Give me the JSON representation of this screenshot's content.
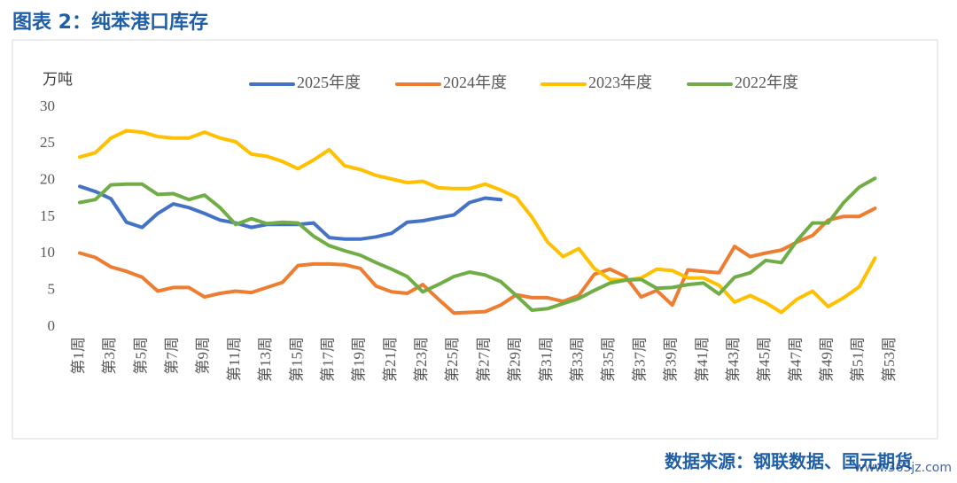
{
  "chart_data": {
    "type": "line",
    "title": "图表 2：纯苯港口库存",
    "y_label": "万吨",
    "source": "数据来源：钢联数据、国元期货",
    "watermark": "www.365jz.com",
    "categories": [
      "第1周",
      null,
      "第3周",
      null,
      "第5周",
      null,
      "第7周",
      null,
      "第9周",
      null,
      "第11周",
      null,
      "第13周",
      null,
      "第15周",
      null,
      "第17周",
      null,
      "第19周",
      null,
      "第21周",
      null,
      "第23周",
      null,
      "第25周",
      null,
      "第27周",
      null,
      "第29周",
      null,
      "第31周",
      null,
      "第33周",
      null,
      "第35周",
      null,
      "第37周",
      null,
      "第39周",
      null,
      "第41周",
      null,
      "第43周",
      null,
      "第45周",
      null,
      "第47周",
      null,
      "第49周",
      null,
      "第51周",
      null,
      "第53周"
    ],
    "ylim": [
      0,
      30
    ],
    "yticks": [
      0,
      5,
      10,
      15,
      20,
      25,
      30
    ],
    "grid": false,
    "legend": "top",
    "series": [
      {
        "name": "2025年度",
        "color": "#4472c4",
        "values": [
          19.2,
          18.5,
          17.5,
          14.3,
          13.6,
          15.5,
          16.8,
          16.3,
          15.5,
          14.6,
          14.2,
          13.6,
          14.0,
          14.0,
          14.0,
          14.2,
          12.2,
          12.0,
          12.0,
          12.3,
          12.8,
          14.3,
          14.5,
          14.9,
          15.3,
          17.0,
          17.6,
          17.4,
          null,
          null,
          null,
          null,
          null,
          null,
          null,
          null,
          null,
          null,
          null,
          null,
          null,
          null,
          null,
          null,
          null,
          null,
          null,
          null,
          null,
          null,
          null,
          null,
          null
        ]
      },
      {
        "name": "2024年度",
        "color": "#ed7d31",
        "values": [
          10.1,
          9.5,
          8.2,
          7.6,
          6.8,
          4.9,
          5.4,
          5.4,
          4.1,
          4.6,
          4.9,
          4.7,
          5.4,
          6.1,
          8.4,
          8.6,
          8.6,
          8.5,
          8.0,
          5.6,
          4.8,
          4.6,
          5.8,
          3.8,
          1.9,
          2.0,
          2.1,
          3.0,
          4.4,
          4.0,
          4.0,
          3.5,
          4.3,
          7.2,
          7.9,
          6.9,
          4.1,
          5.0,
          3.0,
          7.8,
          7.6,
          7.4,
          11.0,
          9.6,
          10.1,
          10.5,
          11.6,
          12.5,
          14.6,
          15.1,
          15.1,
          16.2,
          null
        ]
      },
      {
        "name": "2023年度",
        "color": "#ffc000",
        "values": [
          23.2,
          23.8,
          25.8,
          26.8,
          26.6,
          26.0,
          25.8,
          25.8,
          26.6,
          25.8,
          25.3,
          23.6,
          23.3,
          22.6,
          21.6,
          22.8,
          24.2,
          22.0,
          21.5,
          20.7,
          20.2,
          19.7,
          19.9,
          19.0,
          18.9,
          18.9,
          19.5,
          18.7,
          17.7,
          15.0,
          11.6,
          9.6,
          10.7,
          8.0,
          6.5,
          6.4,
          6.7,
          7.9,
          7.7,
          6.7,
          6.7,
          5.7,
          3.4,
          4.3,
          3.3,
          2.0,
          3.8,
          4.9,
          2.8,
          4.0,
          5.5,
          9.4,
          null
        ]
      },
      {
        "name": "2022年度",
        "color": "#70ad47",
        "values": [
          17.0,
          17.4,
          19.4,
          19.5,
          19.5,
          18.1,
          18.2,
          17.4,
          18.0,
          16.3,
          14.0,
          14.8,
          14.1,
          14.3,
          14.2,
          12.4,
          11.1,
          10.4,
          9.8,
          8.8,
          7.9,
          6.9,
          4.8,
          5.8,
          6.9,
          7.5,
          7.1,
          6.2,
          4.3,
          2.3,
          2.5,
          3.2,
          3.9,
          5.0,
          6.0,
          6.4,
          6.5,
          5.3,
          5.4,
          5.8,
          6.0,
          4.5,
          6.8,
          7.4,
          9.1,
          8.8,
          11.8,
          14.2,
          14.2,
          17.0,
          19.1,
          20.3,
          null
        ]
      }
    ]
  }
}
